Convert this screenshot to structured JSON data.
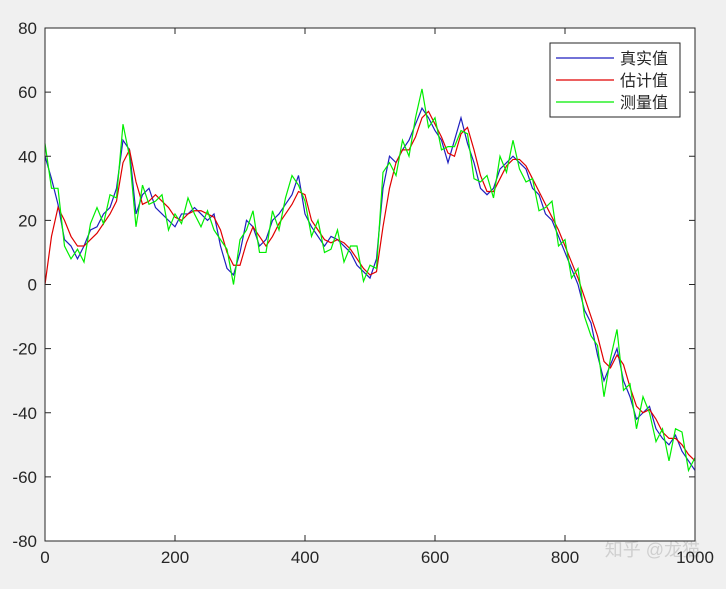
{
  "chart_data": {
    "type": "line",
    "x": [
      0,
      10,
      20,
      30,
      40,
      50,
      60,
      70,
      80,
      90,
      100,
      110,
      120,
      130,
      140,
      150,
      160,
      170,
      180,
      190,
      200,
      210,
      220,
      230,
      240,
      250,
      260,
      270,
      280,
      290,
      300,
      310,
      320,
      330,
      340,
      350,
      360,
      370,
      380,
      390,
      400,
      410,
      420,
      430,
      440,
      450,
      460,
      470,
      480,
      490,
      500,
      510,
      520,
      530,
      540,
      550,
      560,
      570,
      580,
      590,
      600,
      610,
      620,
      630,
      640,
      650,
      660,
      670,
      680,
      690,
      700,
      710,
      720,
      730,
      740,
      750,
      760,
      770,
      780,
      790,
      800,
      810,
      820,
      830,
      840,
      850,
      860,
      870,
      880,
      890,
      900,
      910,
      920,
      930,
      940,
      950,
      960,
      970,
      980,
      990,
      1000
    ],
    "series": [
      {
        "name": "真实值",
        "color": "#1f1fbf",
        "values": [
          40,
          33,
          25,
          14,
          12,
          8,
          12,
          17,
          18,
          22,
          24,
          30,
          45,
          42,
          22,
          28,
          30,
          24,
          22,
          20,
          18,
          22,
          22,
          24,
          22,
          20,
          22,
          12,
          5,
          3,
          10,
          20,
          18,
          12,
          14,
          20,
          22,
          25,
          28,
          34,
          22,
          18,
          15,
          12,
          15,
          14,
          12,
          10,
          6,
          4,
          2,
          8,
          30,
          40,
          38,
          42,
          45,
          50,
          55,
          52,
          48,
          45,
          38,
          45,
          52,
          44,
          38,
          30,
          28,
          30,
          36,
          38,
          40,
          38,
          36,
          30,
          28,
          22,
          20,
          15,
          10,
          5,
          0,
          -8,
          -12,
          -22,
          -30,
          -25,
          -20,
          -30,
          -35,
          -42,
          -40,
          -38,
          -45,
          -48,
          -50,
          -47,
          -52,
          -55,
          -58
        ]
      },
      {
        "name": "估计值",
        "color": "#e00000",
        "values": [
          0,
          15,
          24,
          20,
          15,
          12,
          12,
          14,
          16,
          19,
          22,
          26,
          38,
          42,
          32,
          25,
          26,
          28,
          26,
          24,
          21,
          20,
          22,
          23,
          23,
          22,
          21,
          17,
          10,
          6,
          6,
          13,
          18,
          15,
          12,
          15,
          19,
          22,
          25,
          29,
          28,
          20,
          17,
          14,
          13,
          14,
          13,
          11,
          8,
          5,
          3,
          4,
          18,
          30,
          38,
          42,
          42,
          46,
          52,
          54,
          50,
          46,
          41,
          40,
          47,
          49,
          42,
          34,
          29,
          29,
          33,
          37,
          39,
          39,
          37,
          33,
          29,
          25,
          21,
          17,
          12,
          7,
          2,
          -4,
          -10,
          -16,
          -24,
          -26,
          -22,
          -25,
          -32,
          -38,
          -40,
          -39,
          -42,
          -46,
          -48,
          -48,
          -50,
          -53,
          -55
        ]
      },
      {
        "name": "测量值",
        "color": "#00ee00",
        "values": [
          44,
          30,
          30,
          12,
          8,
          11,
          7,
          19,
          24,
          19,
          28,
          27,
          50,
          40,
          18,
          31,
          25,
          26,
          28,
          17,
          22,
          19,
          27,
          22,
          18,
          23,
          17,
          14,
          11,
          0,
          14,
          17,
          23,
          10,
          10,
          23,
          17,
          27,
          34,
          31,
          26,
          15,
          20,
          10,
          11,
          17,
          7,
          12,
          12,
          1,
          6,
          5,
          35,
          38,
          34,
          45,
          40,
          52,
          61,
          49,
          52,
          42,
          43,
          43,
          48,
          47,
          33,
          32,
          34,
          27,
          40,
          35,
          45,
          36,
          32,
          33,
          23,
          24,
          26,
          12,
          14,
          2,
          5,
          -10,
          -16,
          -19,
          -35,
          -23,
          -14,
          -33,
          -31,
          -45,
          -35,
          -40,
          -49,
          -45,
          -55,
          -45,
          -46,
          -58,
          -54
        ]
      }
    ],
    "xlim": [
      0,
      1000
    ],
    "xticks": [
      0,
      200,
      400,
      600,
      800,
      1000
    ],
    "ylim": [
      -80,
      80
    ],
    "yticks": [
      -80,
      -60,
      -40,
      -20,
      0,
      20,
      40,
      60,
      80
    ],
    "legend": "northeast",
    "watermark": "知乎 @龙猫"
  }
}
